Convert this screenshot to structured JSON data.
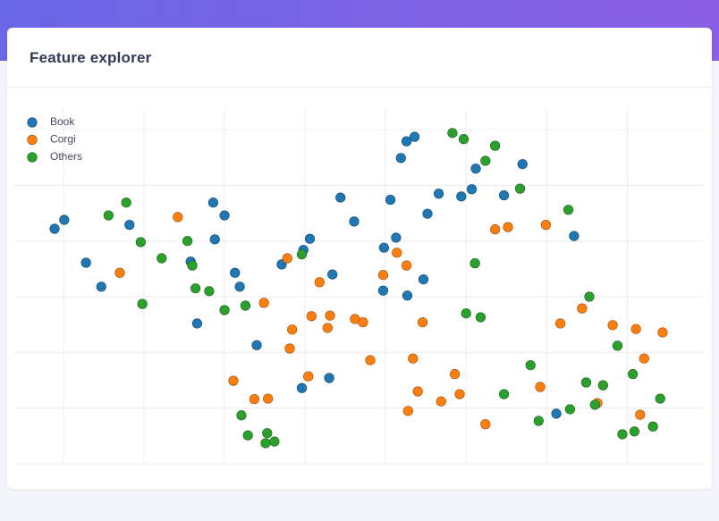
{
  "chart_data": {
    "type": "scatter",
    "title": "Feature explorer",
    "xlim": [
      -0.61,
      7.94
    ],
    "ylim": [
      0,
      6.37
    ],
    "xticks": [
      0,
      1,
      2,
      3,
      4,
      5,
      6,
      7
    ],
    "yticks": [
      0,
      1,
      2,
      3,
      4,
      5,
      6
    ],
    "grid": true,
    "legend": "top-left",
    "series": [
      {
        "name": "Book",
        "color": "#1f77b4",
        "x": [
          -0.11,
          0.01,
          0.28,
          0.47,
          0.82,
          1.58,
          1.66,
          1.86,
          1.88,
          2.0,
          2.13,
          2.19,
          2.4,
          2.71,
          2.98,
          3.06,
          2.96,
          3.3,
          3.34,
          3.44,
          3.61,
          3.98,
          3.97,
          4.06,
          4.13,
          4.19,
          4.26,
          4.36,
          4.27,
          4.47,
          4.52,
          4.66,
          4.94,
          5.07,
          5.12,
          5.47,
          5.7,
          6.34,
          6.12
        ],
        "values": [
          4.22,
          4.38,
          3.61,
          3.18,
          4.29,
          3.63,
          2.52,
          4.69,
          4.03,
          4.46,
          3.43,
          3.18,
          2.13,
          3.58,
          3.84,
          4.04,
          1.36,
          1.54,
          3.4,
          4.78,
          4.35,
          3.88,
          3.11,
          4.74,
          4.06,
          5.49,
          5.79,
          5.87,
          3.02,
          3.31,
          4.49,
          4.85,
          4.8,
          4.93,
          5.3,
          4.82,
          5.38,
          4.09,
          0.9
        ]
      },
      {
        "name": "Corgi",
        "color": "#ff7f0e",
        "x": [
          0.7,
          1.42,
          2.49,
          2.11,
          2.37,
          2.54,
          2.78,
          2.81,
          2.84,
          3.04,
          3.08,
          3.18,
          3.28,
          3.31,
          3.62,
          3.72,
          3.81,
          3.97,
          4.14,
          4.26,
          4.46,
          4.34,
          4.4,
          4.28,
          4.69,
          4.86,
          4.92,
          5.24,
          5.36,
          5.52,
          5.99,
          5.92,
          6.17,
          6.44,
          6.63,
          6.82,
          7.11,
          7.21,
          7.16,
          7.44
        ],
        "values": [
          3.43,
          4.43,
          2.89,
          1.49,
          1.16,
          1.17,
          3.69,
          2.07,
          2.41,
          1.57,
          2.65,
          3.26,
          2.44,
          2.66,
          2.6,
          2.54,
          1.86,
          3.39,
          3.79,
          3.56,
          2.54,
          1.89,
          1.3,
          0.95,
          1.12,
          1.61,
          1.25,
          0.71,
          4.21,
          4.25,
          4.29,
          1.38,
          2.52,
          2.79,
          1.09,
          2.49,
          2.42,
          1.89,
          0.88,
          2.36
        ]
      },
      {
        "name": "Others",
        "color": "#2ca02c",
        "x": [
          0.56,
          0.78,
          0.96,
          0.98,
          1.22,
          1.54,
          1.6,
          1.64,
          1.81,
          2.0,
          2.21,
          2.26,
          2.29,
          2.51,
          2.53,
          2.62,
          2.96,
          4.83,
          4.97,
          5.24,
          5.36,
          5.67,
          5.11,
          5.0,
          5.18,
          5.47,
          5.8,
          5.9,
          6.27,
          6.29,
          6.53,
          6.49,
          6.6,
          6.7,
          6.88,
          6.94,
          7.07,
          7.09,
          7.32,
          7.41
        ],
        "values": [
          4.46,
          4.69,
          3.98,
          2.87,
          3.69,
          4.0,
          3.56,
          3.15,
          3.1,
          2.76,
          0.87,
          2.84,
          0.51,
          0.37,
          0.55,
          0.4,
          3.76,
          5.94,
          5.83,
          5.44,
          5.71,
          4.94,
          3.6,
          2.7,
          2.63,
          1.25,
          1.77,
          0.77,
          4.56,
          0.98,
          3.0,
          1.46,
          1.06,
          1.41,
          2.12,
          0.53,
          1.61,
          0.58,
          0.67,
          1.17
        ]
      }
    ]
  }
}
